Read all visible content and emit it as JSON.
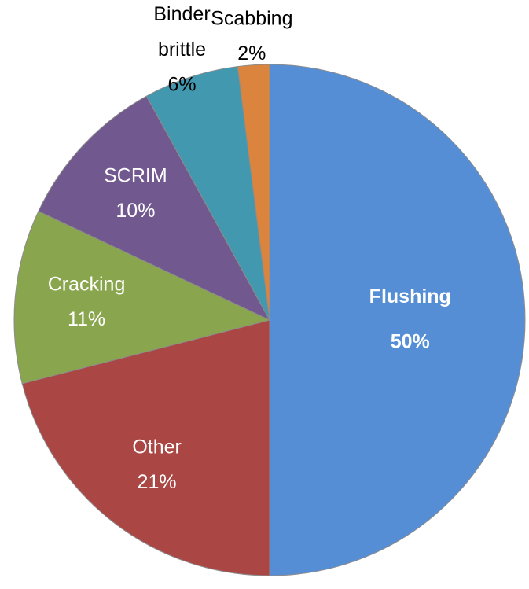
{
  "chart_data": {
    "type": "pie",
    "categories": [
      "Flushing",
      "Other",
      "Cracking",
      "SCRIM",
      "Binder brittle",
      "Scabbing"
    ],
    "values": [
      50,
      21,
      11,
      10,
      6,
      2
    ],
    "value_labels": [
      "50%",
      "21%",
      "11%",
      "10%",
      "6%",
      "2%"
    ],
    "colors": [
      "#558ed5",
      "#aa4643",
      "#89a54e",
      "#71588f",
      "#4198af",
      "#db843d"
    ]
  }
}
